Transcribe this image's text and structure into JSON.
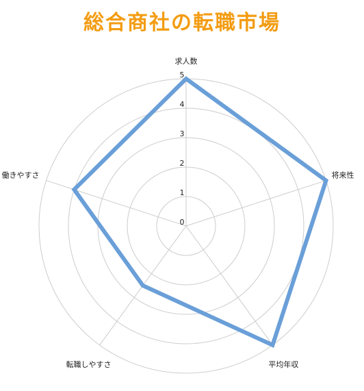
{
  "page": {
    "title": "総合商社の転職市場"
  },
  "colors": {
    "title": "#f39c12",
    "series": "#6a9fd8",
    "grid": "#cccccc"
  },
  "chart_data": {
    "type": "radar",
    "title": "",
    "axes": [
      "求人数",
      "将来性",
      "平均年収",
      "転職しやすさ",
      "働きやすさ"
    ],
    "rmin": 0,
    "rmax": 5,
    "ticks": [
      0,
      1,
      2,
      3,
      4,
      5
    ],
    "grid": true,
    "series": [
      {
        "name": "",
        "values": [
          5,
          5,
          5,
          2.5,
          4
        ]
      }
    ]
  }
}
